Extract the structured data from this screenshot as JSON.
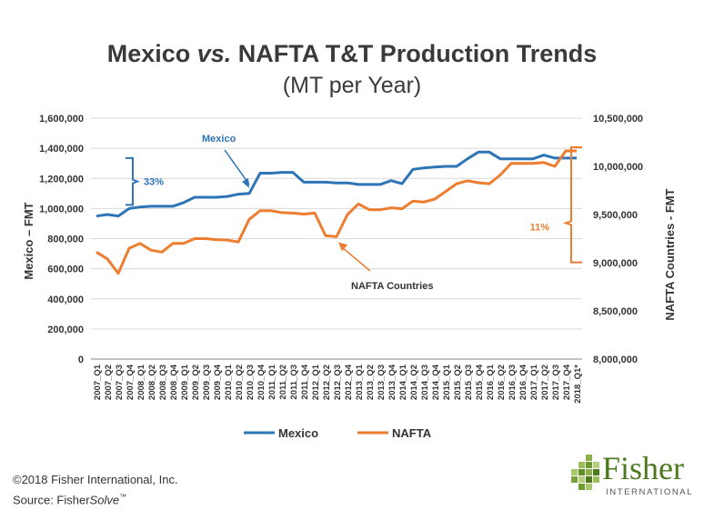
{
  "chart_data": {
    "type": "line",
    "title": "Mexico vs. NAFTA T&T Production Trends",
    "title_parts": [
      "Mexico ",
      "vs.",
      " NAFTA T&T Production Trends"
    ],
    "subtitle": "(MT per Year)",
    "ylabel": "Mexico – FMT",
    "y2label": "NAFTA Countries - FMT",
    "ylim": [
      0,
      1600000
    ],
    "y2lim": [
      8000000,
      10500000
    ],
    "yticks": [
      "0",
      "200,000",
      "400,000",
      "600,000",
      "800,000",
      "1,000,000",
      "1,200,000",
      "1,400,000",
      "1,600,000"
    ],
    "y2ticks": [
      "8,000,000",
      "8,500,000",
      "9,000,000",
      "9,500,000",
      "10,000,000",
      "10,500,000"
    ],
    "categories": [
      "2007_Q1",
      "2007_Q2",
      "2007_Q3",
      "2007_Q4",
      "2008_Q1",
      "2008_Q2",
      "2008_Q3",
      "2008_Q4",
      "2009_Q1",
      "2009_Q2",
      "2009_Q3",
      "2009_Q4",
      "2010_Q1",
      "2010_Q2",
      "2010_Q3",
      "2010_Q4",
      "2011_Q1",
      "2011_Q2",
      "2011_Q3",
      "2011_Q4",
      "2012_Q1",
      "2012_Q2",
      "2012_Q3",
      "2012_Q4",
      "2013_Q1",
      "2013_Q2",
      "2013_Q3",
      "2013_Q4",
      "2014_Q1",
      "2014_Q2",
      "2014_Q3",
      "2014_Q4",
      "2015_Q1",
      "2015_Q2",
      "2015_Q3",
      "2015_Q4",
      "2016_Q1",
      "2016_Q2",
      "2016_Q3",
      "2016_Q4",
      "2017_Q1",
      "2017_Q2",
      "2017_Q3",
      "2017_Q4",
      "2018_Q1*"
    ],
    "series": [
      {
        "name": "Mexico",
        "axis": "left",
        "color": "#2e75b6",
        "values": [
          950000,
          960000,
          950000,
          1000000,
          1010000,
          1015000,
          1015000,
          1015000,
          1040000,
          1075000,
          1075000,
          1075000,
          1080000,
          1095000,
          1100000,
          1235000,
          1235000,
          1240000,
          1240000,
          1175000,
          1175000,
          1175000,
          1170000,
          1170000,
          1160000,
          1160000,
          1160000,
          1185000,
          1165000,
          1260000,
          1270000,
          1275000,
          1280000,
          1280000,
          1330000,
          1375000,
          1375000,
          1330000,
          1330000,
          1330000,
          1330000,
          1355000,
          1335000,
          1335000,
          1335000
        ]
      },
      {
        "name": "NAFTA",
        "axis": "right",
        "color": "#ed7d31",
        "values": [
          9110000,
          9040000,
          8890000,
          9150000,
          9200000,
          9130000,
          9110000,
          9200000,
          9200000,
          9250000,
          9250000,
          9240000,
          9235000,
          9215000,
          9450000,
          9540000,
          9540000,
          9520000,
          9515000,
          9505000,
          9515000,
          9280000,
          9270000,
          9500000,
          9610000,
          9550000,
          9550000,
          9570000,
          9560000,
          9640000,
          9630000,
          9660000,
          9740000,
          9820000,
          9850000,
          9830000,
          9820000,
          9910000,
          10030000,
          10030000,
          10030000,
          10040000,
          10000000,
          10160000,
          10160000
        ]
      }
    ],
    "annotations": [
      {
        "text": "Mexico",
        "color": "#2e75b6"
      },
      {
        "text": "33%",
        "color": "#2e75b6"
      },
      {
        "text": "NAFTA Countries",
        "color": "#333333"
      },
      {
        "text": "11%",
        "color": "#ed7d31"
      }
    ],
    "legend": {
      "position": "bottom",
      "items": [
        "Mexico",
        "NAFTA"
      ]
    },
    "grid": "horizontal"
  },
  "footer": {
    "copyright": "©2018 Fisher International, Inc.",
    "source_prefix": "Source: Fisher",
    "source_italic": "Solve",
    "source_tm": "™"
  },
  "logo": {
    "word": "Fisher",
    "sub": "INTERNATIONAL",
    "color": "#4d7a1f"
  }
}
